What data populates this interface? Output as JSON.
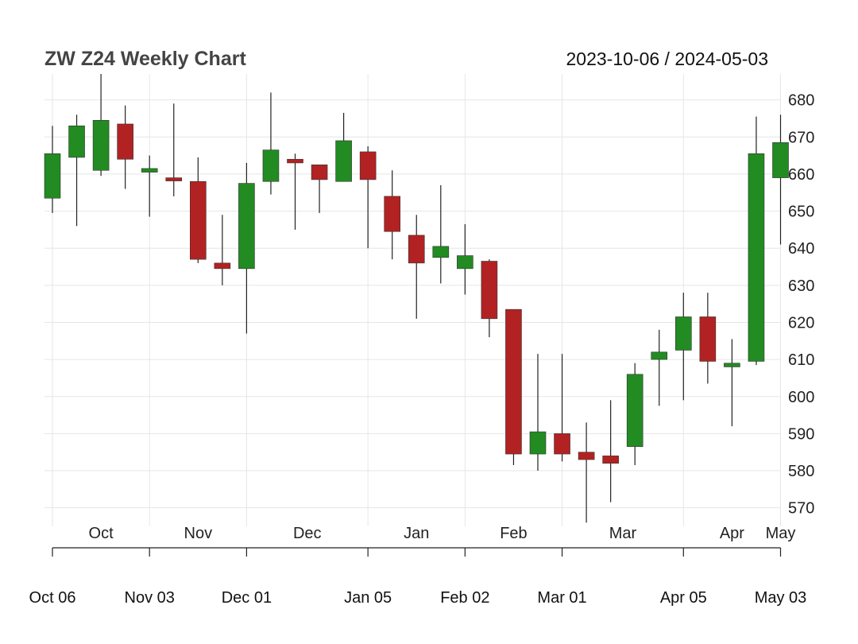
{
  "chart_data": {
    "type": "candlestick",
    "title": "ZW Z24 Weekly Chart",
    "date_range": "2023-10-06 / 2024-05-03",
    "colors": {
      "up": "#228B22",
      "down": "#B22222",
      "wick": "#222222",
      "grid": "#e6e6e6"
    },
    "grid": true,
    "ylim": [
      565,
      687
    ],
    "y_ticks": [
      570,
      580,
      590,
      600,
      610,
      620,
      630,
      640,
      650,
      660,
      670,
      680
    ],
    "month_labels": [
      "Oct",
      "Nov",
      "Dec",
      "Jan",
      "Feb",
      "Mar",
      "Apr",
      "May"
    ],
    "x_tick_labels": [
      "Oct 06",
      "Nov 03",
      "Dec 01",
      "Jan 05",
      "Feb 02",
      "Mar 01",
      "Apr 05",
      "May 03"
    ],
    "candles": [
      {
        "date": "2023-10-06",
        "open": 653.5,
        "high": 673.0,
        "low": 649.5,
        "close": 665.5
      },
      {
        "date": "2023-10-13",
        "open": 664.5,
        "high": 676.0,
        "low": 646.0,
        "close": 673.0
      },
      {
        "date": "2023-10-20",
        "open": 661.0,
        "high": 687.0,
        "low": 659.5,
        "close": 674.5
      },
      {
        "date": "2023-10-27",
        "open": 673.5,
        "high": 678.5,
        "low": 656.0,
        "close": 664.0
      },
      {
        "date": "2023-11-03",
        "open": 660.5,
        "high": 665.0,
        "low": 648.5,
        "close": 661.5
      },
      {
        "date": "2023-11-10",
        "open": 659.0,
        "high": 679.0,
        "low": 654.0,
        "close": 658.5
      },
      {
        "date": "2023-11-17",
        "open": 658.0,
        "high": 664.5,
        "low": 636.0,
        "close": 637.0
      },
      {
        "date": "2023-11-24",
        "open": 636.0,
        "high": 649.0,
        "low": 630.0,
        "close": 634.5
      },
      {
        "date": "2023-12-01",
        "open": 634.5,
        "high": 663.0,
        "low": 617.0,
        "close": 657.5
      },
      {
        "date": "2023-12-08",
        "open": 658.0,
        "high": 682.0,
        "low": 654.5,
        "close": 666.5
      },
      {
        "date": "2023-12-15",
        "open": 664.0,
        "high": 665.5,
        "low": 645.0,
        "close": 663.0
      },
      {
        "date": "2023-12-22",
        "open": 662.5,
        "high": 662.5,
        "low": 649.5,
        "close": 658.5
      },
      {
        "date": "2023-12-29",
        "open": 658.0,
        "high": 676.5,
        "low": 658.0,
        "close": 669.0
      },
      {
        "date": "2024-01-05",
        "open": 666.0,
        "high": 667.5,
        "low": 640.0,
        "close": 658.5
      },
      {
        "date": "2024-01-12",
        "open": 654.0,
        "high": 661.0,
        "low": 637.0,
        "close": 644.5
      },
      {
        "date": "2024-01-19",
        "open": 643.5,
        "high": 649.0,
        "low": 621.0,
        "close": 636.0
      },
      {
        "date": "2024-01-26",
        "open": 637.5,
        "high": 657.0,
        "low": 630.5,
        "close": 640.5
      },
      {
        "date": "2024-02-02",
        "open": 634.5,
        "high": 646.5,
        "low": 627.5,
        "close": 638.0
      },
      {
        "date": "2024-02-09",
        "open": 636.5,
        "high": 637.0,
        "low": 616.0,
        "close": 621.0
      },
      {
        "date": "2024-02-16",
        "open": 623.5,
        "high": 623.5,
        "low": 581.5,
        "close": 584.5
      },
      {
        "date": "2024-02-23",
        "open": 584.5,
        "high": 611.5,
        "low": 580.0,
        "close": 590.5
      },
      {
        "date": "2024-03-01",
        "open": 590.0,
        "high": 611.5,
        "low": 582.5,
        "close": 584.5
      },
      {
        "date": "2024-03-08",
        "open": 585.0,
        "high": 593.0,
        "low": 566.0,
        "close": 583.0
      },
      {
        "date": "2024-03-15",
        "open": 584.0,
        "high": 599.0,
        "low": 571.5,
        "close": 582.0
      },
      {
        "date": "2024-03-22",
        "open": 586.5,
        "high": 609.0,
        "low": 581.5,
        "close": 606.0
      },
      {
        "date": "2024-03-29",
        "open": 610.0,
        "high": 618.0,
        "low": 597.5,
        "close": 612.0
      },
      {
        "date": "2024-04-05",
        "open": 612.5,
        "high": 628.0,
        "low": 599.0,
        "close": 621.5
      },
      {
        "date": "2024-04-12",
        "open": 621.5,
        "high": 628.0,
        "low": 603.5,
        "close": 609.5
      },
      {
        "date": "2024-04-19",
        "open": 608.0,
        "high": 615.5,
        "low": 592.0,
        "close": 609.0
      },
      {
        "date": "2024-04-26",
        "open": 609.5,
        "high": 675.5,
        "low": 608.5,
        "close": 665.5
      },
      {
        "date": "2024-05-03",
        "open": 659.0,
        "high": 676.0,
        "low": 641.0,
        "close": 668.5
      }
    ]
  }
}
